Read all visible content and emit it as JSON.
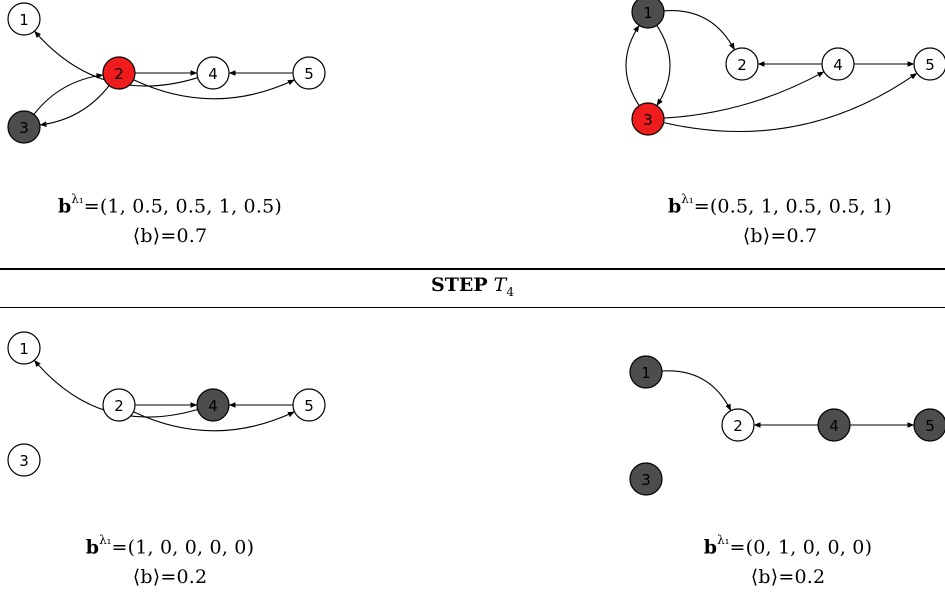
{
  "step_title": {
    "label": "STEP",
    "var": "T",
    "sub": "4"
  },
  "colors": {
    "white": "#ffffff",
    "red": "#ee1c1c",
    "gray": "#4d4d4d"
  },
  "panels": [
    {
      "id": "top-left",
      "nodes": [
        {
          "id": "1",
          "label": "1",
          "color": "white"
        },
        {
          "id": "2",
          "label": "2",
          "color": "red"
        },
        {
          "id": "3",
          "label": "3",
          "color": "gray"
        },
        {
          "id": "4",
          "label": "4",
          "color": "white"
        },
        {
          "id": "5",
          "label": "5",
          "color": "white"
        }
      ],
      "edges": [
        {
          "from": "4",
          "to": "1"
        },
        {
          "from": "2",
          "to": "4"
        },
        {
          "from": "5",
          "to": "4"
        },
        {
          "from": "2",
          "to": "5"
        },
        {
          "from": "3",
          "to": "2"
        },
        {
          "from": "2",
          "to": "3"
        }
      ],
      "formula": {
        "bold": "b",
        "sup": "λ₁",
        "vector": "=(1, 0.5, 0.5, 1, 0.5)",
        "avg": "⟨b⟩=0.7"
      }
    },
    {
      "id": "top-right",
      "nodes": [
        {
          "id": "1",
          "label": "1",
          "color": "gray"
        },
        {
          "id": "2",
          "label": "2",
          "color": "white"
        },
        {
          "id": "3",
          "label": "3",
          "color": "red"
        },
        {
          "id": "4",
          "label": "4",
          "color": "white"
        },
        {
          "id": "5",
          "label": "5",
          "color": "white"
        }
      ],
      "edges": [
        {
          "from": "1",
          "to": "2"
        },
        {
          "from": "1",
          "to": "3"
        },
        {
          "from": "3",
          "to": "1"
        },
        {
          "from": "4",
          "to": "2"
        },
        {
          "from": "4",
          "to": "5"
        },
        {
          "from": "3",
          "to": "4"
        },
        {
          "from": "3",
          "to": "5"
        }
      ],
      "formula": {
        "bold": "b",
        "sup": "λ₁",
        "vector": "=(0.5, 1, 0.5, 0.5, 1)",
        "avg": "⟨b⟩=0.7"
      }
    },
    {
      "id": "bottom-left",
      "nodes": [
        {
          "id": "1",
          "label": "1",
          "color": "white"
        },
        {
          "id": "2",
          "label": "2",
          "color": "white"
        },
        {
          "id": "3",
          "label": "3",
          "color": "white"
        },
        {
          "id": "4",
          "label": "4",
          "color": "gray"
        },
        {
          "id": "5",
          "label": "5",
          "color": "white"
        }
      ],
      "edges": [
        {
          "from": "4",
          "to": "1"
        },
        {
          "from": "2",
          "to": "4"
        },
        {
          "from": "5",
          "to": "4"
        },
        {
          "from": "2",
          "to": "5"
        }
      ],
      "formula": {
        "bold": "b",
        "sup": "λ₁",
        "vector": "=(1, 0, 0, 0, 0)",
        "avg": "⟨b⟩=0.2"
      }
    },
    {
      "id": "bottom-right",
      "nodes": [
        {
          "id": "1",
          "label": "1",
          "color": "gray"
        },
        {
          "id": "2",
          "label": "2",
          "color": "white"
        },
        {
          "id": "3",
          "label": "3",
          "color": "gray"
        },
        {
          "id": "4",
          "label": "4",
          "color": "gray"
        },
        {
          "id": "5",
          "label": "5",
          "color": "gray"
        }
      ],
      "edges": [
        {
          "from": "1",
          "to": "2"
        },
        {
          "from": "4",
          "to": "2"
        },
        {
          "from": "4",
          "to": "5"
        }
      ],
      "formula": {
        "bold": "b",
        "sup": "λ₁",
        "vector": "=(0, 1, 0, 0, 0)",
        "avg": "⟨b⟩=0.2"
      }
    }
  ]
}
